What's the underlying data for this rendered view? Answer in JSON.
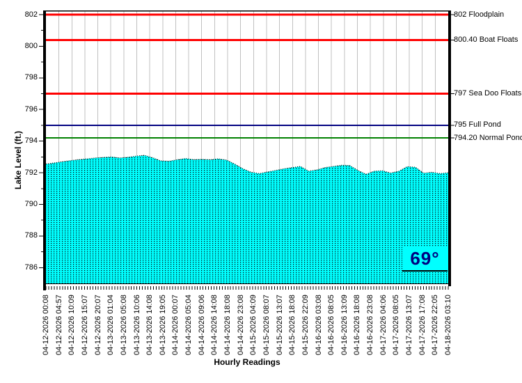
{
  "chart_data": {
    "type": "area",
    "title": "",
    "xlabel": "Hourly Readings",
    "ylabel": "Lake Level (ft.)",
    "ylim": [
      785,
      802.5
    ],
    "grid": "vertical-only",
    "gridline_color": "#C0C0C0",
    "area_color": "#00FFFF",
    "area_dot_color": "#000000",
    "y_ticks_major": [
      802,
      800,
      798,
      796,
      794,
      792,
      790,
      788,
      786
    ],
    "y_ticks_minor": [
      801,
      799,
      797,
      795,
      793,
      791,
      789,
      787
    ],
    "x_labels": [
      "04-12-2026 00:08",
      "04-12-2026 04:57",
      "04-12-2026 10:09",
      "04-12-2026 15:07",
      "04-12-2026 20:07",
      "04-13-2026 01:04",
      "04-13-2026 05:08",
      "04-13-2026 10:06",
      "04-13-2026 14:08",
      "04-13-2026 19:05",
      "04-14-2026 00:07",
      "04-14-2026 05:04",
      "04-14-2026 09:06",
      "04-14-2026 14:08",
      "04-14-2026 18:08",
      "04-14-2026 23:08",
      "04-15-2026 04:09",
      "04-15-2026 08:07",
      "04-15-2026 13:07",
      "04-15-2026 18:08",
      "04-15-2026 22:09",
      "04-16-2026 03:08",
      "04-16-2026 08:05",
      "04-16-2026 13:09",
      "04-16-2026 18:08",
      "04-16-2026 23:08",
      "04-17-2026 04:06",
      "04-17-2026 08:05",
      "04-17-2026 13:07",
      "04-17-2026 17:08",
      "04-17-2026 22:05",
      "04-18-2026 03:10"
    ],
    "hourly_tick_count": 147,
    "series": [
      {
        "name": "Lake Level",
        "sampling": "evenly spaced across x-range",
        "values": [
          792.55,
          792.62,
          792.7,
          792.77,
          792.83,
          792.88,
          792.93,
          792.97,
          793.0,
          792.93,
          792.98,
          793.05,
          793.1,
          792.95,
          792.75,
          792.73,
          792.82,
          792.9,
          792.83,
          792.85,
          792.82,
          792.88,
          792.8,
          792.55,
          792.25,
          792.03,
          791.95,
          792.05,
          792.15,
          792.25,
          792.33,
          792.4,
          792.1,
          792.18,
          792.33,
          792.4,
          792.47,
          792.46,
          792.15,
          791.9,
          792.1,
          792.12,
          791.98,
          792.1,
          792.38,
          792.35,
          791.97,
          792.03,
          791.95,
          792.0
        ]
      }
    ],
    "reference_lines": [
      {
        "value": 802.0,
        "label": "802 Floodplain",
        "color": "#FF0000",
        "width": 3
      },
      {
        "value": 800.4,
        "label": "800.40 Boat Floats",
        "color": "#FF0000",
        "width": 3
      },
      {
        "value": 797.0,
        "label": "797 Sea Doo Floats",
        "color": "#FF0000",
        "width": 3
      },
      {
        "value": 795.0,
        "label": "795 Full Pond",
        "color": "#000080",
        "width": 2
      },
      {
        "value": 794.2,
        "label": "794.20 Normal Pond",
        "color": "#008000",
        "width": 2
      }
    ]
  },
  "badge": {
    "text": "69°",
    "background": "#00FFFF",
    "text_color": "#000080"
  }
}
